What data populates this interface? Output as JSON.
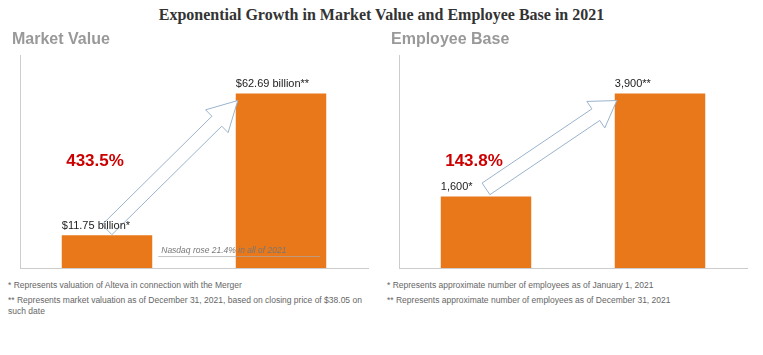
{
  "title": "Exponential Growth in Market Value and Employee Base in 2021",
  "chart_data": [
    {
      "type": "bar",
      "subtitle": "Market Value",
      "categories": [
        null,
        null
      ],
      "values": [
        11.75,
        62.69
      ],
      "value_labels": [
        "$11.75 billion*",
        "$62.69 billion**"
      ],
      "data_labels": true,
      "color": "#E8781A",
      "ylim": [
        0,
        76.4818
      ],
      "tick_labels": false,
      "grid": false,
      "annotations": [
        {
          "text": "433.5%",
          "color": "#cc0000"
        },
        {
          "text": "Nasdaq rose 21.4% in all of 2021"
        }
      ],
      "footnotes": [
        "* Represents valuation of Alteva in connection with the Merger",
        "** Represents market valuation as of December 31, 2021, based on closing price of $38.05 on such date"
      ]
    },
    {
      "type": "bar",
      "subtitle": "Employee Base",
      "categories": [
        null,
        null
      ],
      "values": [
        1600,
        3900
      ],
      "value_labels": [
        "1,600*",
        "3,900**"
      ],
      "data_labels": true,
      "color": "#E8781A",
      "ylim": [
        0,
        4758
      ],
      "tick_labels": false,
      "grid": false,
      "annotations": [
        {
          "text": "143.8%",
          "color": "#cc0000"
        }
      ],
      "footnotes": [
        "* Represents approximate number of employees as of January 1, 2021",
        "** Represents approximate number of employees as of December 31, 2021"
      ]
    }
  ]
}
